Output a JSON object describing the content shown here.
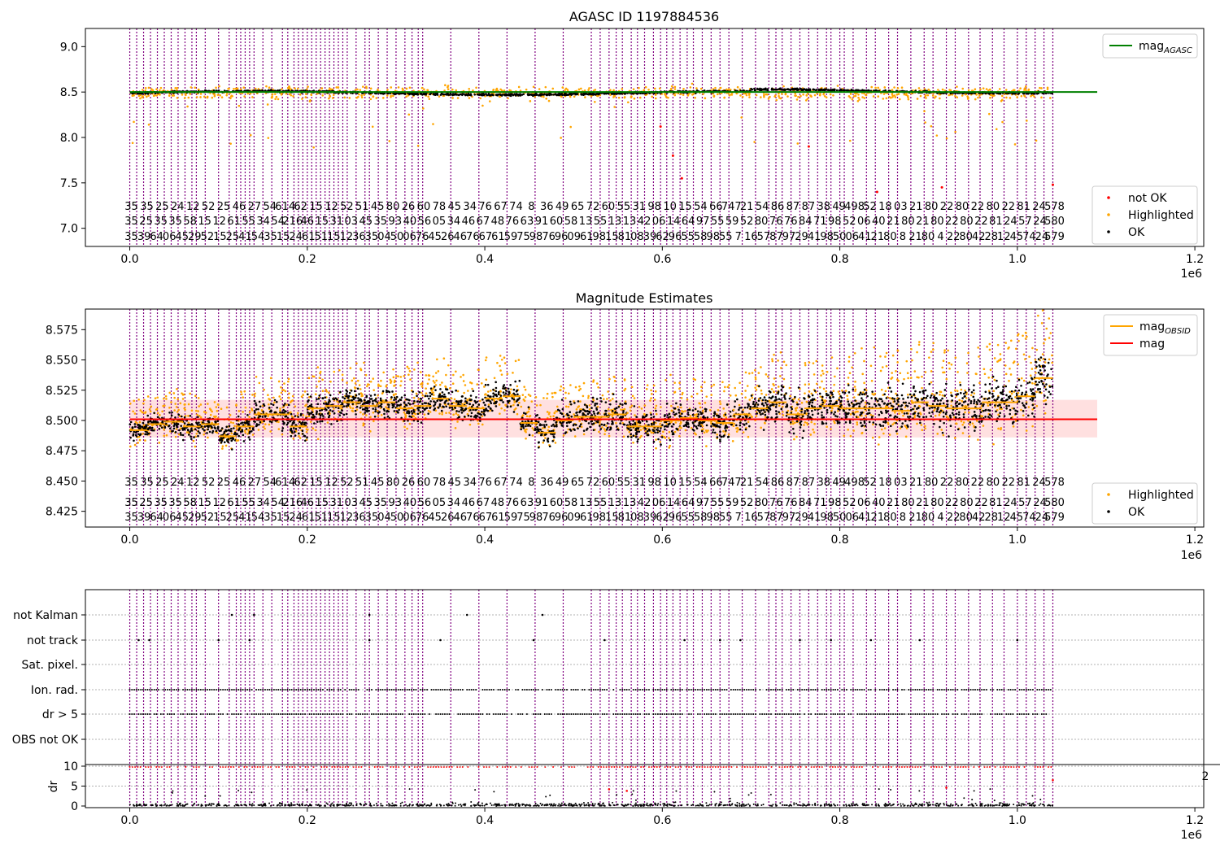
{
  "chart_data": [
    {
      "type": "scatter",
      "title": "AGASC ID 1197884536",
      "xlabel": "",
      "ylabel": "",
      "x_offset_label": "1e6",
      "xlim": [
        -50000,
        1210000
      ],
      "ylim": [
        6.8,
        9.2
      ],
      "xticks": [
        0.0,
        0.2,
        0.4,
        0.6,
        0.8,
        1.0,
        1.2
      ],
      "xtick_labels": [
        "0.0",
        "0.2",
        "0.4",
        "0.6",
        "0.8",
        "1.0",
        "1.2"
      ],
      "yticks": [
        7.0,
        7.5,
        8.0,
        8.5,
        9.0
      ],
      "ytick_labels": [
        "7.0",
        "7.5",
        "8.0",
        "8.5",
        "9.0"
      ],
      "hline": {
        "name": "mag_AGASC",
        "value": 8.5,
        "x_end": 1090000,
        "color": "#008000"
      },
      "series": [
        {
          "name": "OK",
          "color": "#000000",
          "baseline": 8.49,
          "spread": 0.03
        },
        {
          "name": "Highlighted",
          "color": "#ffa500",
          "baseline": 8.49,
          "spread": 0.12
        },
        {
          "name": "not OK",
          "color": "#ff0000",
          "points": [
            [
              598000,
              8.12
            ],
            [
              612000,
              7.8
            ],
            [
              622000,
              7.55
            ],
            [
              765000,
              7.9
            ],
            [
              842000,
              7.4
            ],
            [
              915000,
              7.45
            ],
            [
              1040000,
              7.48
            ]
          ]
        }
      ],
      "legends": [
        {
          "position": "top-right",
          "entries": [
            {
              "label": "mag",
              "subscript": "AGASC",
              "kind": "line",
              "color": "#008000"
            }
          ]
        },
        {
          "position": "bottom-right",
          "entries": [
            {
              "label": "not OK",
              "kind": "dot",
              "color": "#ff0000"
            },
            {
              "label": "Highlighted",
              "kind": "dot",
              "color": "#ffa500"
            },
            {
              "label": "OK",
              "kind": "dot",
              "color": "#000000"
            }
          ]
        }
      ],
      "obsid_label_rows": [
        [
          "35",
          "35",
          "25",
          "24",
          "12",
          "52",
          "25",
          "46",
          "27",
          "54",
          "614",
          "62",
          "15",
          "12",
          "52",
          "51",
          "45",
          "80",
          "26",
          "60",
          "78",
          "45",
          "34",
          "76",
          "67",
          "74",
          "8",
          "36",
          "49",
          "65",
          "72",
          "60",
          "55",
          "31",
          "98",
          "10",
          "15",
          "54",
          "66",
          "747",
          "21",
          "54",
          "86",
          "87",
          "87",
          "38",
          "49",
          "498",
          "52",
          "18",
          "03",
          "21",
          "80",
          "22",
          "80",
          "22",
          "80",
          "22",
          "81",
          "24",
          "578"
        ],
        [
          "35",
          "25",
          "35",
          "35",
          "58",
          "15",
          "12",
          "61",
          "55",
          "34",
          "54",
          "216",
          "46",
          "15",
          "31",
          "03",
          "45",
          "35",
          "93",
          "40",
          "56",
          "05",
          "34",
          "46",
          "67",
          "48",
          "76",
          "63",
          "91",
          "60",
          "58",
          "13",
          "55",
          "13",
          "13",
          "42",
          "06",
          "14",
          "64",
          "97",
          "55",
          "59",
          "52",
          "80",
          "76",
          "76",
          "84",
          "71",
          "98",
          "52",
          "06",
          "40",
          "21",
          "80",
          "21",
          "80",
          "22",
          "80",
          "22",
          "81",
          "24",
          "57",
          "24",
          "580"
        ],
        [
          "35",
          "39",
          "64",
          "06",
          "45",
          "29",
          "52",
          "15",
          "25",
          "41",
          "54",
          "35",
          "15",
          "24",
          "61",
          "51",
          "15",
          "12",
          "36",
          "35",
          "04",
          "50",
          "06",
          "76",
          "45",
          "26",
          "46",
          "76",
          "67",
          "61",
          "59",
          "75",
          "98",
          "76",
          "96",
          "09",
          "61",
          "98",
          "15",
          "81",
          "08",
          "39",
          "62",
          "96",
          "55",
          "58",
          "98",
          "55",
          "7",
          "16",
          "57",
          "87",
          "97",
          "29",
          "41",
          "98",
          "50",
          "06",
          "41",
          "21",
          "80",
          "8",
          "21",
          "80",
          "4",
          "22",
          "80",
          "42",
          "28",
          "12",
          "45",
          "74",
          "24",
          "579"
        ]
      ]
    },
    {
      "type": "scatter",
      "title": "Magnitude Estimates",
      "xlabel": "",
      "ylabel": "",
      "x_offset_label": "1e6",
      "xlim": [
        -50000,
        1210000
      ],
      "ylim": [
        8.412,
        8.592
      ],
      "xticks": [
        0.0,
        0.2,
        0.4,
        0.6,
        0.8,
        1.0,
        1.2
      ],
      "xtick_labels": [
        "0.0",
        "0.2",
        "0.4",
        "0.6",
        "0.8",
        "1.0",
        "1.2"
      ],
      "yticks": [
        8.425,
        8.45,
        8.475,
        8.5,
        8.525,
        8.55,
        8.575
      ],
      "ytick_labels": [
        "8.425",
        "8.450",
        "8.475",
        "8.500",
        "8.525",
        "8.550",
        "8.575"
      ],
      "mag": {
        "value": 8.501,
        "band": [
          8.486,
          8.517
        ],
        "x_end": 1090000,
        "color": "#ff0000"
      },
      "series": [
        {
          "name": "OK",
          "color": "#000000"
        },
        {
          "name": "Highlighted",
          "color": "#ffa500"
        },
        {
          "name": "mag_OBSID",
          "color": "#ffa500"
        }
      ],
      "obsid_segments": [
        [
          0,
          8.492,
          0.018
        ],
        [
          20000,
          8.497,
          0.016
        ],
        [
          40000,
          8.499,
          0.018
        ],
        [
          60000,
          8.495,
          0.02
        ],
        [
          80000,
          8.497,
          0.014
        ],
        [
          100000,
          8.487,
          0.018
        ],
        [
          120000,
          8.495,
          0.02
        ],
        [
          140000,
          8.505,
          0.022
        ],
        [
          160000,
          8.505,
          0.02
        ],
        [
          180000,
          8.495,
          0.02
        ],
        [
          200000,
          8.51,
          0.024
        ],
        [
          220000,
          8.512,
          0.02
        ],
        [
          240000,
          8.515,
          0.022
        ],
        [
          260000,
          8.512,
          0.024
        ],
        [
          280000,
          8.515,
          0.022
        ],
        [
          300000,
          8.51,
          0.024
        ],
        [
          320000,
          8.512,
          0.024
        ],
        [
          340000,
          8.518,
          0.024
        ],
        [
          360000,
          8.512,
          0.02
        ],
        [
          380000,
          8.51,
          0.022
        ],
        [
          400000,
          8.518,
          0.024
        ],
        [
          420000,
          8.52,
          0.022
        ],
        [
          440000,
          8.498,
          0.02
        ],
        [
          460000,
          8.49,
          0.022
        ],
        [
          480000,
          8.5,
          0.022
        ],
        [
          500000,
          8.503,
          0.022
        ],
        [
          520000,
          8.503,
          0.022
        ],
        [
          540000,
          8.505,
          0.024
        ],
        [
          560000,
          8.495,
          0.024
        ],
        [
          580000,
          8.495,
          0.024
        ],
        [
          600000,
          8.5,
          0.026
        ],
        [
          620000,
          8.502,
          0.022
        ],
        [
          640000,
          8.5,
          0.022
        ],
        [
          660000,
          8.498,
          0.024
        ],
        [
          680000,
          8.505,
          0.024
        ],
        [
          700000,
          8.51,
          0.026
        ],
        [
          720000,
          8.515,
          0.028
        ],
        [
          740000,
          8.505,
          0.03
        ],
        [
          760000,
          8.51,
          0.028
        ],
        [
          780000,
          8.512,
          0.03
        ],
        [
          800000,
          8.51,
          0.032
        ],
        [
          820000,
          8.51,
          0.034
        ],
        [
          840000,
          8.51,
          0.032
        ],
        [
          860000,
          8.508,
          0.034
        ],
        [
          880000,
          8.515,
          0.034
        ],
        [
          900000,
          8.512,
          0.036
        ],
        [
          920000,
          8.51,
          0.034
        ],
        [
          940000,
          8.51,
          0.034
        ],
        [
          960000,
          8.515,
          0.036
        ],
        [
          980000,
          8.515,
          0.034
        ],
        [
          1000000,
          8.52,
          0.036
        ],
        [
          1020000,
          8.535,
          0.038
        ]
      ],
      "legends": [
        {
          "position": "top-right",
          "entries": [
            {
              "label": "mag",
              "subscript": "OBSID",
              "kind": "line",
              "color": "#ffa500"
            },
            {
              "label": "mag",
              "kind": "line",
              "color": "#ff0000"
            }
          ]
        },
        {
          "position": "bottom-right",
          "entries": [
            {
              "label": "Highlighted",
              "kind": "dot",
              "color": "#ffa500"
            },
            {
              "label": "OK",
              "kind": "dot",
              "color": "#000000"
            }
          ]
        }
      ]
    },
    {
      "type": "scatter",
      "title": "",
      "xlabel": "",
      "ylabel": "dr",
      "x_offset_label": "1e6",
      "xlim": [
        -50000,
        1210000
      ],
      "flag_rows": [
        "not Kalman",
        "not track",
        "Sat. pixel.",
        "Ion. rad.",
        "dr > 5",
        "OBS not OK"
      ],
      "dr_ylim": [
        0,
        11
      ],
      "dr_yticks": [
        0,
        5,
        10
      ],
      "dr_ytick_labels": [
        "0",
        "5",
        "10"
      ],
      "dr_threshold": 10,
      "xticks": [
        0.0,
        0.2,
        0.4,
        0.6,
        0.8,
        1.0,
        1.2
      ],
      "xtick_labels": [
        "0.0",
        "0.2",
        "0.4",
        "0.6",
        "0.8",
        "1.0",
        "1.2"
      ],
      "right_edge_tick": "2"
    }
  ],
  "obsid_lines": {
    "color": "#800080",
    "dense_ranges": [
      [
        0,
        70000,
        9
      ],
      [
        120000,
        140000,
        4
      ],
      [
        210000,
        240000,
        6
      ],
      [
        330000,
        520000,
        6
      ]
    ],
    "x": [
      75000,
      85000,
      100000,
      112000,
      150000,
      160000,
      172000,
      178000,
      185000,
      190000,
      195000,
      200000,
      205000,
      245000,
      255000,
      265000,
      270000,
      280000,
      290000,
      300000,
      310000,
      318000,
      325000,
      530000,
      540000,
      548000,
      555000,
      565000,
      572000,
      580000,
      590000,
      598000,
      605000,
      612000,
      620000,
      628000,
      635000,
      645000,
      655000,
      665000,
      675000,
      690000,
      705000,
      720000,
      728000,
      735000,
      745000,
      755000,
      765000,
      775000,
      785000,
      790000,
      800000,
      805000,
      815000,
      830000,
      840000,
      855000,
      865000,
      880000,
      895000,
      905000,
      920000,
      930000,
      945000,
      958000,
      972000,
      985000,
      1000000,
      1010000,
      1020000,
      1030000,
      1040000
    ]
  },
  "colors": {
    "ok": "#000000",
    "highlighted": "#ffa500",
    "not_ok": "#ff0000",
    "obsid_line": "#800080",
    "mag_agasc": "#008000",
    "mag": "#ff0000",
    "mag_band": "#ffcccc"
  }
}
